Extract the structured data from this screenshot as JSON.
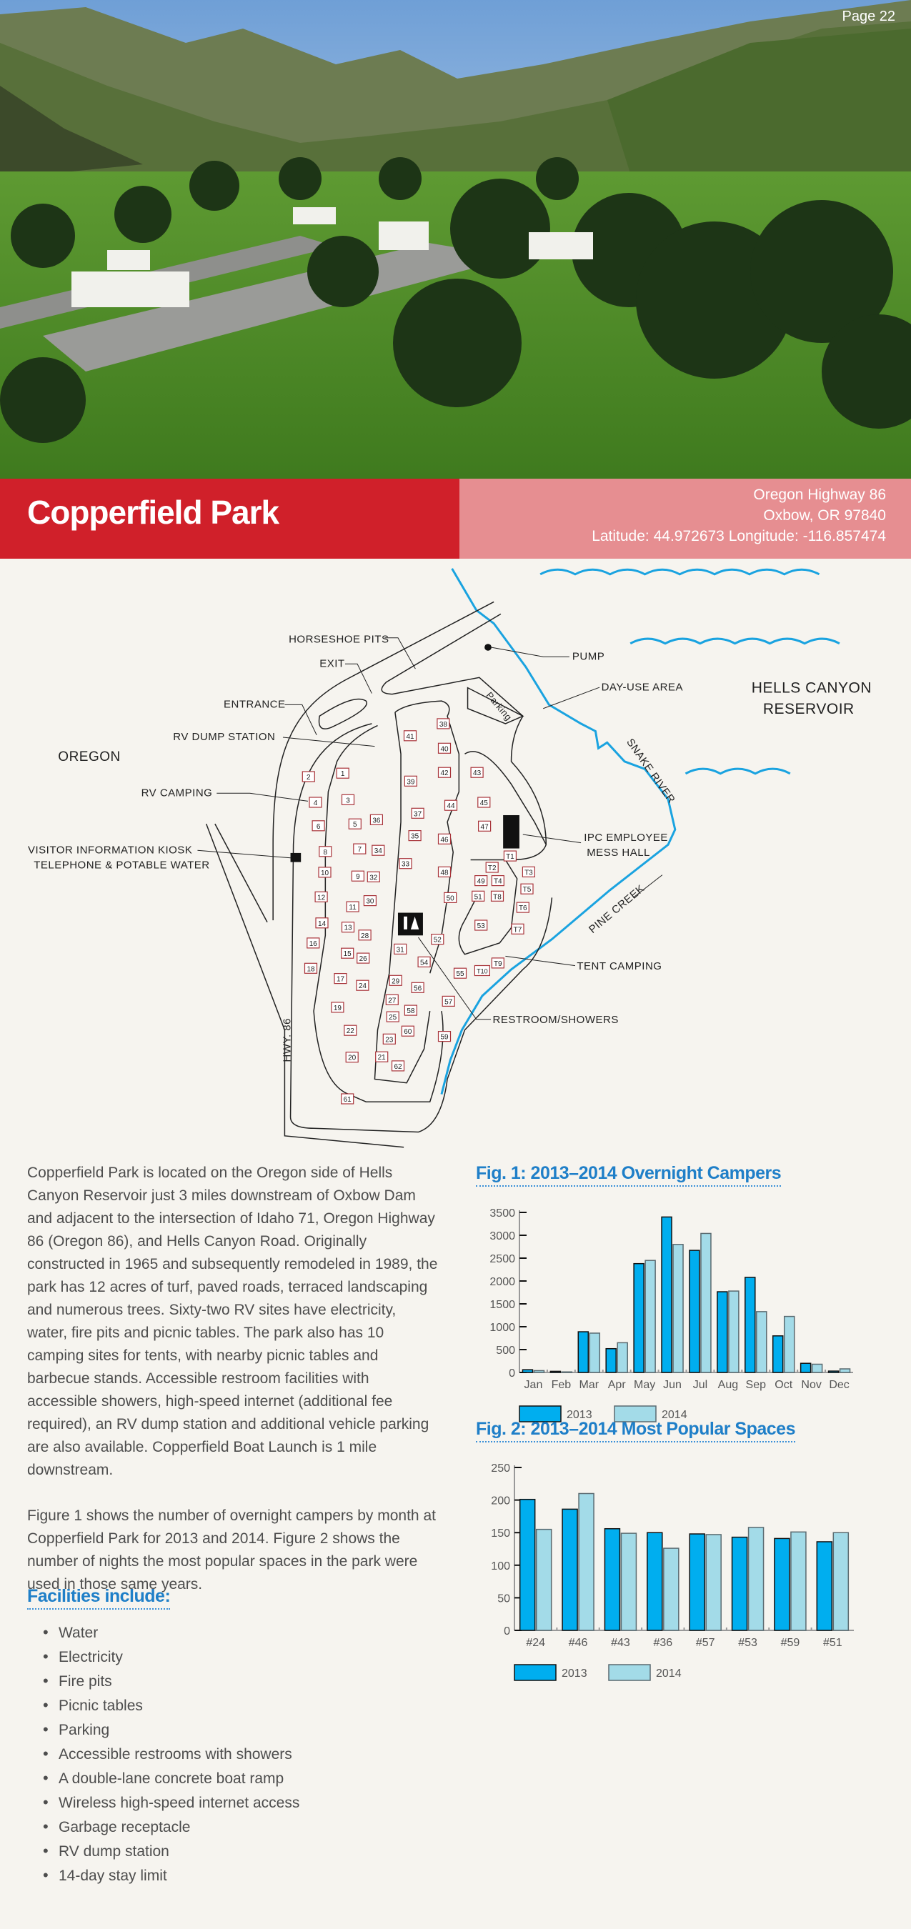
{
  "page_label": "Page 22",
  "header": {
    "title": "Copperfield Park",
    "address_line1": "Oregon Highway 86",
    "address_line2": "Oxbow, OR 97840",
    "coordinates": "Latitude: 44.972673 Longitude: -116.857474",
    "colors": {
      "title_band": "#d0202a",
      "address_band": "#e68e91"
    }
  },
  "map": {
    "labels": {
      "horseshoe": "HORSESHOE PITS",
      "exit": "EXIT",
      "entrance": "ENTRANCE",
      "dump": "RV DUMP STATION",
      "oregon": "OREGON",
      "rv_camping": "RV CAMPING",
      "kiosk1": "VISITOR INFORMATION KIOSK",
      "kiosk2": "TELEPHONE & POTABLE WATER",
      "pump": "PUMP",
      "day_use": "DAY-USE AREA",
      "reservoir1": "HELLS CANYON",
      "reservoir2": "RESERVOIR",
      "snake": "SNAKE RIVER",
      "ipc1": "IPC EMPLOYEE",
      "ipc2": "MESS HALL",
      "pine": "PINE CREEK",
      "tent": "TENT CAMPING",
      "restroom": "RESTROOM/SHOWERS",
      "hwy": "HWY. 86",
      "parking": "Parking"
    },
    "sites": [
      "38",
      "41",
      "40",
      "1",
      "2",
      "42",
      "43",
      "39",
      "3",
      "4",
      "45",
      "44",
      "37",
      "36",
      "5",
      "6",
      "47",
      "35",
      "46",
      "7",
      "34",
      "8",
      "T1",
      "33",
      "T2",
      "48",
      "T3",
      "10",
      "9",
      "32",
      "49",
      "T4",
      "T5",
      "51",
      "T8",
      "12",
      "50",
      "30",
      "11",
      "T6",
      "14",
      "13",
      "53",
      "T7",
      "28",
      "52",
      "16",
      "31",
      "15",
      "26",
      "54",
      "T9",
      "18",
      "T10",
      "55",
      "17",
      "29",
      "24",
      "56",
      "57",
      "27",
      "19",
      "58",
      "25",
      "22",
      "60",
      "59",
      "23",
      "20",
      "21",
      "62",
      "61"
    ],
    "river_color": "#1aa3e0"
  },
  "body": {
    "paragraph1": "Copperfield Park is located on the Oregon side of Hells Canyon Reservoir just 3 miles downstream of Oxbow Dam and adjacent to the intersection of Idaho 71, Oregon Highway 86 (Oregon 86), and Hells Canyon Road. Originally constructed in 1965 and subsequently remodeled in 1989, the park has 12 acres of turf, paved roads, terraced landscaping and numerous trees. Sixty-two RV sites have electricity, water, fire pits and picnic tables. The park also has 10 camping sites for tents, with nearby picnic tables and barbecue stands. Accessible restroom facilities with accessible showers, high-speed internet (additional fee required), an RV dump station and additional vehicle parking are also available. Copperfield Boat Launch is 1 mile downstream.",
    "paragraph2": "Figure 1 shows the number of overnight campers by month at Copperfield Park for 2013 and 2014. Figure 2 shows the number of nights the most popular spaces in the park were used in those same years."
  },
  "facilities": {
    "heading": "Facilities include:",
    "items": [
      "Water",
      "Electricity",
      "Fire pits",
      "Picnic tables",
      "Parking",
      "Accessible restrooms with showers",
      "A double-lane concrete boat ramp",
      "Wireless high-speed internet access",
      "Garbage receptacle",
      "RV dump station",
      "14-day stay limit"
    ]
  },
  "chart_data": [
    {
      "type": "bar",
      "title": "Fig. 1: 2013–2014 Overnight Campers",
      "categories": [
        "Jan",
        "Feb",
        "Mar",
        "Apr",
        "May",
        "Jun",
        "Jul",
        "Aug",
        "Sep",
        "Oct",
        "Nov",
        "Dec"
      ],
      "series": [
        {
          "name": "2013",
          "color": "#00aeef",
          "values": [
            60,
            25,
            890,
            520,
            2380,
            3400,
            2670,
            1765,
            2080,
            800,
            200,
            30
          ]
        },
        {
          "name": "2014",
          "color": "#a3dbe8",
          "values": [
            40,
            12,
            860,
            650,
            2450,
            2800,
            3040,
            1780,
            1330,
            1225,
            180,
            78
          ]
        }
      ],
      "ylim": [
        0,
        3500
      ],
      "yticks": [
        "0",
        "500",
        "1000",
        "1500",
        "2000",
        "2500",
        "3000",
        "3500"
      ],
      "grid": false,
      "legend": "bottom-left"
    },
    {
      "type": "bar",
      "title": "Fig. 2: 2013–2014 Most Popular Spaces",
      "categories": [
        "#24",
        "#46",
        "#43",
        "#36",
        "#57",
        "#53",
        "#59",
        "#51"
      ],
      "series": [
        {
          "name": "2013",
          "color": "#00aeef",
          "values": [
            201,
            186,
            156,
            150,
            148,
            143,
            141,
            136
          ]
        },
        {
          "name": "2014",
          "color": "#a3dbe8",
          "values": [
            155,
            210,
            149,
            126,
            147,
            158,
            151,
            150
          ]
        }
      ],
      "ylim": [
        0,
        250
      ],
      "yticks": [
        "0",
        "50",
        "100",
        "150",
        "200",
        "250"
      ],
      "grid": false,
      "legend": "bottom-left"
    }
  ]
}
